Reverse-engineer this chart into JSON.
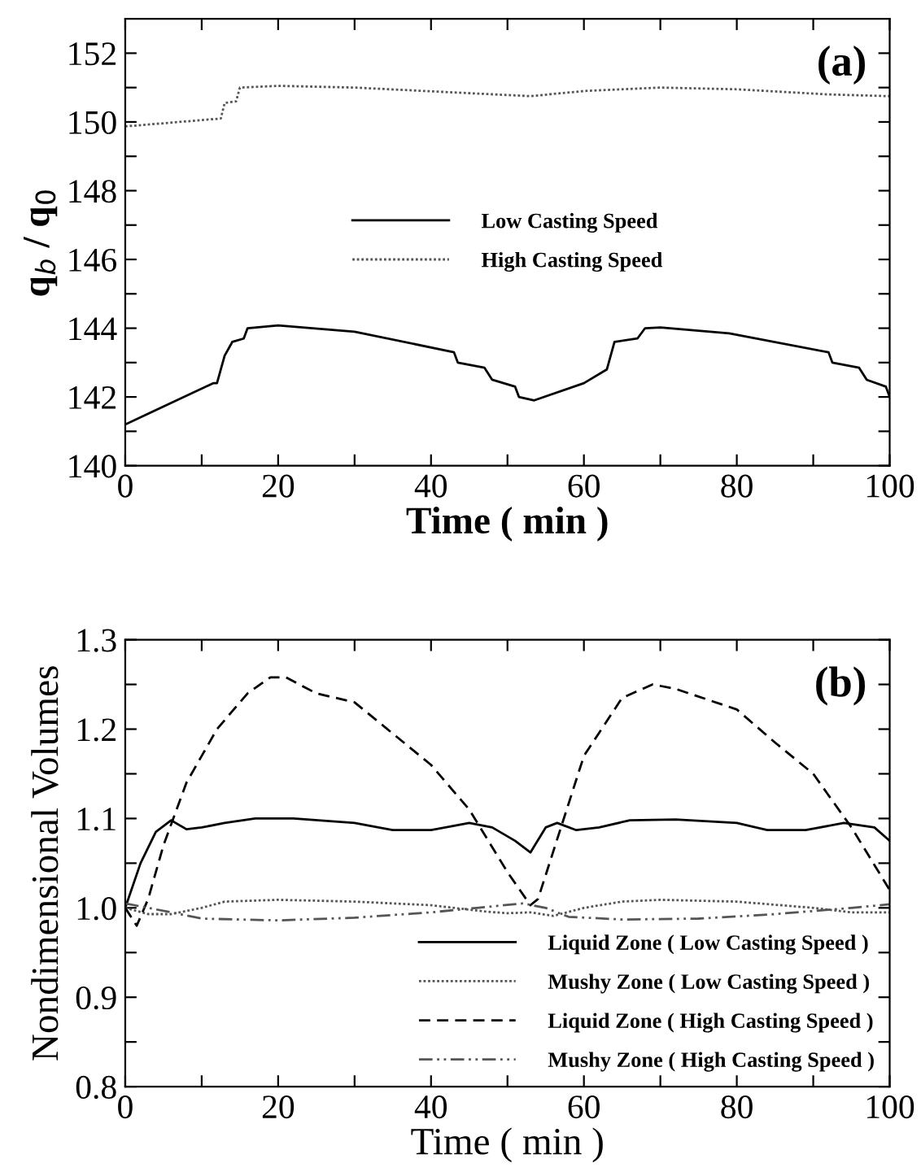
{
  "chart_data": [
    {
      "type": "line",
      "xlabel": "Time ( min )",
      "ylabel": "q$_{b}$ / q$_{0}$",
      "annotations": [
        "(a)"
      ],
      "xlim": [
        0,
        100
      ],
      "xticks": [
        0,
        {
          "value": 10,
          "label": null
        },
        20,
        {
          "value": 30,
          "label": null
        },
        40,
        {
          "value": 50,
          "label": null
        },
        60,
        {
          "value": 70,
          "label": null
        },
        80,
        {
          "value": 90,
          "label": null
        },
        100
      ],
      "ylim": [
        140,
        153
      ],
      "yticks": [
        140,
        {
          "value": 141,
          "label": null
        },
        142,
        {
          "value": 143,
          "label": null
        },
        144,
        {
          "value": 145,
          "label": null
        },
        146,
        {
          "value": 147,
          "label": null
        },
        148,
        {
          "value": 149,
          "label": null
        },
        150,
        {
          "value": 151,
          "label": null
        },
        152
      ],
      "legend": "center",
      "grid": false,
      "marker": "none",
      "series": [
        {
          "name": "Low Casting Speed",
          "color": "#000000",
          "line_style": "solid",
          "x": [
            0,
            11.5,
            12,
            13,
            14,
            15.5,
            16,
            20,
            30,
            43,
            43.5,
            47,
            48,
            51,
            51.5,
            53.5,
            60,
            63,
            64,
            67,
            68,
            70,
            79,
            92,
            92.5,
            96,
            97,
            99.5,
            100
          ],
          "values": [
            141.2,
            142.4,
            142.4,
            143.2,
            143.6,
            143.7,
            144.0,
            144.08,
            143.9,
            143.3,
            143.0,
            142.85,
            142.5,
            142.3,
            142.0,
            141.9,
            142.4,
            142.8,
            143.6,
            143.7,
            144.0,
            144.02,
            143.85,
            143.3,
            143.0,
            142.85,
            142.5,
            142.3,
            142.0
          ]
        },
        {
          "name": "High Casting Speed",
          "color": "#555555",
          "line_style": "dotted",
          "x": [
            0,
            12.5,
            13,
            14.5,
            15,
            20,
            30,
            53,
            60,
            70,
            80,
            92,
            100
          ],
          "values": [
            149.87,
            150.1,
            150.55,
            150.6,
            151.0,
            151.05,
            151.0,
            150.75,
            150.9,
            151.0,
            150.95,
            150.8,
            150.75
          ]
        }
      ]
    },
    {
      "type": "line",
      "xlabel": "Time ( min )",
      "ylabel": "Nondimensional Volumes",
      "annotations": [
        "(b)"
      ],
      "xlim": [
        0,
        100
      ],
      "xticks": [
        0,
        {
          "value": 10,
          "label": null
        },
        20,
        {
          "value": 30,
          "label": null
        },
        40,
        {
          "value": 50,
          "label": null
        },
        60,
        {
          "value": 70,
          "label": null
        },
        80,
        {
          "value": 90,
          "label": null
        },
        100
      ],
      "ylim": [
        0.8,
        1.3
      ],
      "yticks": [
        {
          "value": 0.8,
          "label": "0.8"
        },
        {
          "value": 0.85,
          "label": null
        },
        {
          "value": 0.9,
          "label": "0.9"
        },
        {
          "value": 0.95,
          "label": null
        },
        {
          "value": 1.0,
          "label": "1.0"
        },
        {
          "value": 1.05,
          "label": null
        },
        {
          "value": 1.1,
          "label": "1.1"
        },
        {
          "value": 1.15,
          "label": null
        },
        {
          "value": 1.2,
          "label": "1.2"
        },
        {
          "value": 1.25,
          "label": null
        },
        {
          "value": 1.3,
          "label": "1.3"
        }
      ],
      "legend": "lower right",
      "grid": false,
      "marker": "none",
      "series": [
        {
          "name": "Liquid Zone ( Low Casting Speed )",
          "color": "#000000",
          "line_style": "solid",
          "x": [
            0,
            2,
            4,
            6,
            8,
            10,
            13,
            17,
            22,
            30,
            35,
            40,
            45,
            48,
            51,
            53,
            55,
            56.5,
            59,
            62,
            66,
            72,
            80,
            84,
            89,
            94,
            98,
            100
          ],
          "values": [
            1.0,
            1.05,
            1.085,
            1.098,
            1.088,
            1.09,
            1.095,
            1.1,
            1.1,
            1.095,
            1.087,
            1.087,
            1.095,
            1.09,
            1.075,
            1.062,
            1.09,
            1.095,
            1.087,
            1.09,
            1.098,
            1.099,
            1.095,
            1.087,
            1.087,
            1.095,
            1.09,
            1.075
          ]
        },
        {
          "name": "Mushy Zone ( Low Casting Speed )",
          "color": "#555555",
          "line_style": "dotted",
          "x": [
            0,
            3,
            6,
            10,
            13,
            20,
            30,
            40,
            47,
            50,
            53,
            56,
            60,
            65,
            70,
            80,
            90,
            95,
            100
          ],
          "values": [
            1.0,
            0.993,
            0.993,
            1.0,
            1.007,
            1.009,
            1.007,
            1.003,
            0.996,
            0.994,
            0.995,
            0.991,
            1.0,
            1.007,
            1.009,
            1.007,
            1.0,
            0.995,
            0.995
          ]
        },
        {
          "name": "Liquid Zone ( High Casting Speed )",
          "color": "#000000",
          "line_style": "dashed",
          "x": [
            0,
            1.5,
            3,
            5,
            8,
            12,
            16,
            19,
            21,
            25,
            30,
            35,
            40,
            45,
            50,
            53,
            54,
            57,
            60,
            65,
            69,
            72,
            80,
            85,
            90,
            95,
            100
          ],
          "values": [
            1.0,
            0.98,
            1.01,
            1.07,
            1.14,
            1.2,
            1.24,
            1.258,
            1.258,
            1.24,
            1.23,
            1.195,
            1.16,
            1.11,
            1.04,
            1.003,
            1.01,
            1.09,
            1.17,
            1.235,
            1.25,
            1.245,
            1.222,
            1.185,
            1.15,
            1.09,
            1.02
          ]
        },
        {
          "name": "Mushy Zone ( High Casting Speed )",
          "color": "#555555",
          "line_style": "dashdot",
          "x": [
            0,
            3,
            6,
            10,
            20,
            30,
            40,
            46,
            52,
            55,
            58,
            65,
            75,
            85,
            95,
            100
          ],
          "values": [
            1.005,
            1.0,
            0.995,
            0.988,
            0.986,
            0.989,
            0.995,
            1.0,
            1.005,
            1.0,
            0.99,
            0.987,
            0.988,
            0.993,
            1.0,
            1.004
          ]
        }
      ]
    }
  ]
}
